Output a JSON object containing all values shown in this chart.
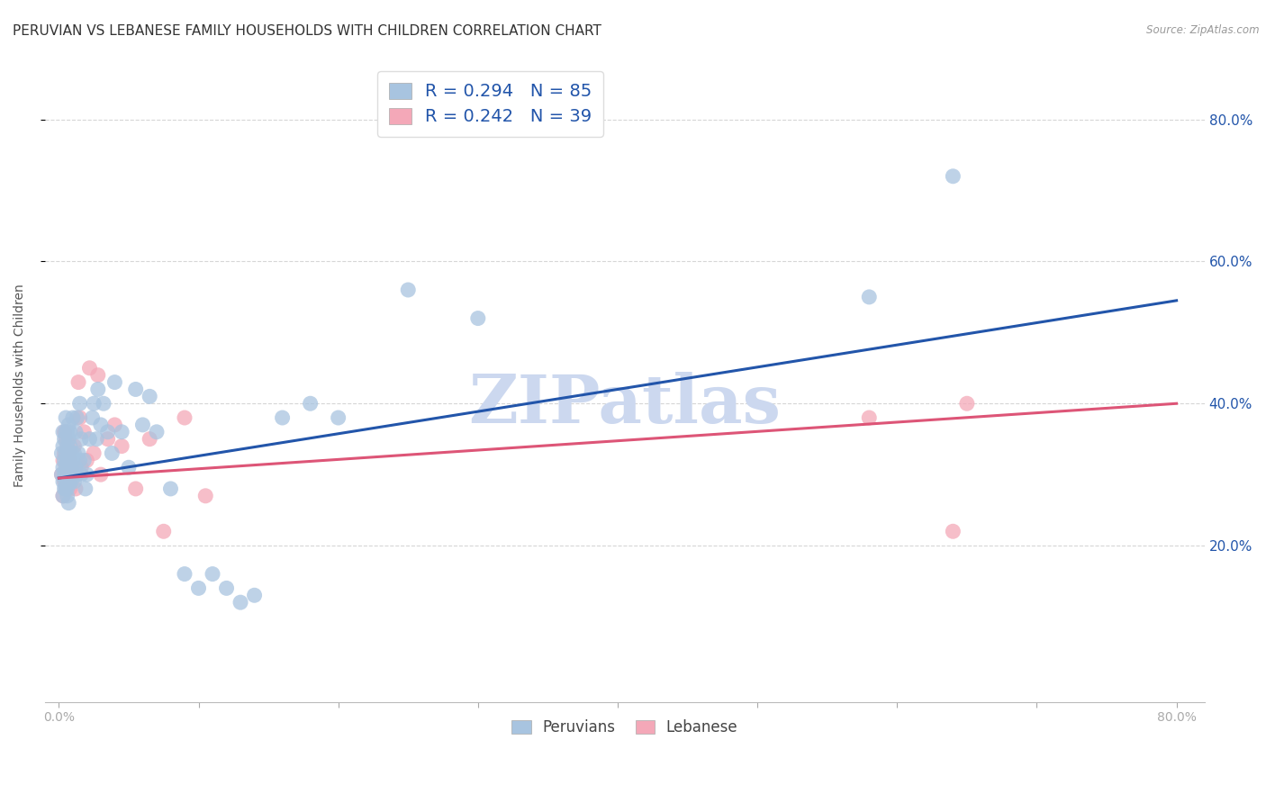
{
  "title": "PERUVIAN VS LEBANESE FAMILY HOUSEHOLDS WITH CHILDREN CORRELATION CHART",
  "source": "Source: ZipAtlas.com",
  "ylabel": "Family Households with Children",
  "xlim": [
    0.0,
    0.8
  ],
  "ylim": [
    0.0,
    0.85
  ],
  "ytick_positions": [
    0.2,
    0.4,
    0.6,
    0.8
  ],
  "ytick_labels": [
    "20.0%",
    "40.0%",
    "60.0%",
    "80.0%"
  ],
  "legend1_R": "0.294",
  "legend1_N": "85",
  "legend2_R": "0.242",
  "legend2_N": "39",
  "peruvian_color": "#a8c4e0",
  "lebanese_color": "#f4a8b8",
  "peruvian_line_color": "#2255aa",
  "lebanese_line_color": "#dd5577",
  "legend_text_color": "#2255aa",
  "watermark": "ZIPatlas",
  "watermark_color": "#ccd8ef",
  "blue_line_x0": 0.0,
  "blue_line_y0": 0.295,
  "blue_line_x1": 0.8,
  "blue_line_y1": 0.545,
  "pink_line_x0": 0.0,
  "pink_line_y0": 0.295,
  "pink_line_x1": 0.8,
  "pink_line_y1": 0.4,
  "peruvians_x": [
    0.002,
    0.002,
    0.003,
    0.003,
    0.003,
    0.003,
    0.003,
    0.004,
    0.004,
    0.004,
    0.004,
    0.005,
    0.005,
    0.005,
    0.005,
    0.005,
    0.005,
    0.006,
    0.006,
    0.006,
    0.006,
    0.006,
    0.006,
    0.007,
    0.007,
    0.007,
    0.007,
    0.007,
    0.007,
    0.007,
    0.008,
    0.008,
    0.008,
    0.008,
    0.008,
    0.009,
    0.009,
    0.009,
    0.01,
    0.01,
    0.01,
    0.011,
    0.011,
    0.012,
    0.012,
    0.013,
    0.013,
    0.014,
    0.015,
    0.015,
    0.016,
    0.016,
    0.018,
    0.019,
    0.02,
    0.022,
    0.024,
    0.025,
    0.027,
    0.028,
    0.03,
    0.032,
    0.035,
    0.038,
    0.04,
    0.045,
    0.05,
    0.055,
    0.06,
    0.065,
    0.07,
    0.08,
    0.09,
    0.1,
    0.11,
    0.12,
    0.13,
    0.14,
    0.16,
    0.18,
    0.2,
    0.25,
    0.3,
    0.58,
    0.64
  ],
  "peruvians_y": [
    0.3,
    0.33,
    0.31,
    0.29,
    0.34,
    0.27,
    0.36,
    0.3,
    0.32,
    0.28,
    0.35,
    0.31,
    0.29,
    0.33,
    0.36,
    0.28,
    0.38,
    0.3,
    0.32,
    0.34,
    0.28,
    0.36,
    0.27,
    0.3,
    0.31,
    0.33,
    0.35,
    0.29,
    0.37,
    0.26,
    0.3,
    0.32,
    0.34,
    0.29,
    0.36,
    0.31,
    0.33,
    0.29,
    0.3,
    0.32,
    0.38,
    0.33,
    0.29,
    0.31,
    0.36,
    0.3,
    0.38,
    0.33,
    0.32,
    0.4,
    0.35,
    0.3,
    0.32,
    0.28,
    0.3,
    0.35,
    0.38,
    0.4,
    0.35,
    0.42,
    0.37,
    0.4,
    0.36,
    0.33,
    0.43,
    0.36,
    0.31,
    0.42,
    0.37,
    0.41,
    0.36,
    0.28,
    0.16,
    0.14,
    0.16,
    0.14,
    0.12,
    0.13,
    0.38,
    0.4,
    0.38,
    0.56,
    0.52,
    0.55,
    0.72
  ],
  "lebanese_x": [
    0.002,
    0.003,
    0.003,
    0.004,
    0.004,
    0.004,
    0.005,
    0.005,
    0.005,
    0.006,
    0.006,
    0.007,
    0.007,
    0.008,
    0.008,
    0.009,
    0.01,
    0.011,
    0.012,
    0.014,
    0.015,
    0.016,
    0.018,
    0.02,
    0.022,
    0.025,
    0.028,
    0.03,
    0.035,
    0.04,
    0.045,
    0.055,
    0.065,
    0.075,
    0.09,
    0.105,
    0.58,
    0.64,
    0.65
  ],
  "lebanese_y": [
    0.3,
    0.32,
    0.27,
    0.29,
    0.33,
    0.36,
    0.3,
    0.28,
    0.35,
    0.31,
    0.34,
    0.29,
    0.33,
    0.32,
    0.28,
    0.31,
    0.3,
    0.34,
    0.28,
    0.43,
    0.38,
    0.31,
    0.36,
    0.32,
    0.45,
    0.33,
    0.44,
    0.3,
    0.35,
    0.37,
    0.34,
    0.28,
    0.35,
    0.22,
    0.38,
    0.27,
    0.38,
    0.22,
    0.4
  ],
  "grid_color": "#cccccc",
  "title_fontsize": 11,
  "axis_label_fontsize": 10,
  "tick_label_color": "#2255aa",
  "tick_fontsize": 9
}
